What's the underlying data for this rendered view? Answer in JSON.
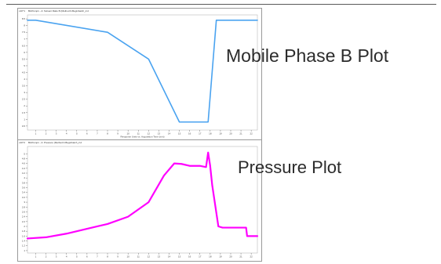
{
  "annotations": {
    "top_label": "Mobile Phase B Plot",
    "bottom_label": "Pressure Plot"
  },
  "colors": {
    "solvent_trace": "#4aa3f0",
    "pressure_trace": "#ff00ff",
    "frame": "#9a9a9a",
    "grid": "#e6e6e6"
  },
  "chart_data": [
    {
      "type": "line",
      "id": "solvent",
      "title": "BinPump1 - A: Solvent Ratio B (Method 0-Beginbatch_2.d",
      "ylabel_exponent": "x10^1",
      "xlabel": "Response Units vs. Acquisition Time (min)",
      "xlim": [
        0.2,
        22.6
      ],
      "ylim": [
        0.2,
        8.8
      ],
      "x_ticks": [
        "1",
        "2",
        "3",
        "4",
        "5",
        "6",
        "7",
        "8",
        "9",
        "10",
        "11",
        "12",
        "13",
        "14",
        "15",
        "16",
        "17",
        "18",
        "19",
        "20",
        "21",
        "22"
      ],
      "y_ticks": [
        "0.5",
        "1",
        "1.5",
        "2",
        "2.5",
        "3",
        "3.5",
        "4",
        "4.5",
        "5",
        "5.5",
        "6",
        "6.5",
        "7",
        "7.5",
        "8",
        "8.5"
      ],
      "series": [
        {
          "x": [
            0.2,
            1.0,
            8.0,
            12.0,
            15.0,
            17.8,
            18.6,
            22.6
          ],
          "y": [
            8.4,
            8.4,
            7.5,
            5.5,
            0.8,
            0.8,
            8.4,
            8.4
          ]
        }
      ]
    },
    {
      "type": "line",
      "id": "pressure",
      "title": "BinPump1 - A: Pressure (Method 0-Beginbatch_2.d",
      "ylabel_exponent": "x10^2",
      "xlabel": "",
      "xlim": [
        0.2,
        22.6
      ],
      "ylim": [
        0.9,
        5.3
      ],
      "x_ticks": [
        "1",
        "2",
        "3",
        "4",
        "5",
        "6",
        "7",
        "8",
        "9",
        "10",
        "11",
        "12",
        "13",
        "14",
        "15",
        "16",
        "17",
        "18",
        "19",
        "20",
        "21",
        "22"
      ],
      "y_ticks": [
        "1",
        "1.2",
        "1.4",
        "1.6",
        "1.8",
        "2",
        "2.2",
        "2.4",
        "2.6",
        "2.8",
        "3",
        "3.2",
        "3.4",
        "3.6",
        "3.8",
        "4",
        "4.2",
        "4.4",
        "4.6",
        "4.8",
        "5"
      ],
      "series": [
        {
          "x": [
            0.2,
            2.0,
            4.0,
            6.0,
            8.0,
            10.0,
            12.0,
            13.5,
            14.5,
            15.2,
            16.0,
            17.0,
            17.6,
            17.8,
            18.0,
            18.2,
            18.8,
            19.2,
            21.5,
            21.6,
            21.8,
            22.6
          ],
          "y": [
            1.5,
            1.55,
            1.7,
            1.9,
            2.1,
            2.4,
            3.0,
            4.1,
            4.6,
            4.58,
            4.5,
            4.5,
            4.45,
            5.05,
            4.5,
            3.7,
            2.0,
            1.95,
            1.95,
            1.6,
            1.6,
            1.6
          ]
        }
      ]
    }
  ]
}
